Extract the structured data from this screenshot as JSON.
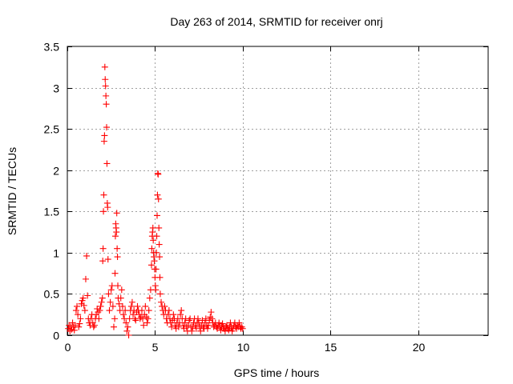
{
  "chart_data": {
    "type": "scatter",
    "title": "Day 263 of 2014, SRMTID for receiver onrj",
    "xlabel": "GPS time / hours",
    "ylabel": "SRMTID / TECUs",
    "xlim": [
      0,
      24
    ],
    "ylim": [
      0,
      3.5
    ],
    "xticks": [
      0,
      5,
      10,
      15,
      20
    ],
    "xtick_labels": [
      "0",
      "5",
      "10",
      "15",
      "20"
    ],
    "yticks": [
      0,
      0.5,
      1,
      1.5,
      2,
      2.5,
      3,
      3.5
    ],
    "ytick_labels": [
      "0",
      "0.5",
      "1",
      "1.5",
      "2",
      "2.5",
      "3",
      "3.5"
    ],
    "grid": true,
    "marker": "+",
    "series": [
      {
        "name": "onrj",
        "color": "#ff0000",
        "points": [
          [
            0.05,
            0.08
          ],
          [
            0.1,
            0.12
          ],
          [
            0.15,
            0.05
          ],
          [
            0.2,
            0.1
          ],
          [
            0.25,
            0.07
          ],
          [
            0.3,
            0.15
          ],
          [
            0.35,
            0.1
          ],
          [
            0.4,
            0.06
          ],
          [
            0.45,
            0.12
          ],
          [
            0.5,
            0.3
          ],
          [
            0.55,
            0.35
          ],
          [
            0.6,
            0.25
          ],
          [
            0.65,
            0.1
          ],
          [
            0.7,
            0.14
          ],
          [
            0.75,
            0.2
          ],
          [
            0.8,
            0.38
          ],
          [
            0.85,
            0.42
          ],
          [
            0.9,
            0.45
          ],
          [
            0.95,
            0.36
          ],
          [
            1.0,
            0.3
          ],
          [
            1.05,
            0.68
          ],
          [
            1.1,
            0.96
          ],
          [
            1.15,
            0.48
          ],
          [
            1.2,
            0.2
          ],
          [
            1.25,
            0.15
          ],
          [
            1.3,
            0.12
          ],
          [
            1.35,
            0.2
          ],
          [
            1.4,
            0.25
          ],
          [
            1.45,
            0.15
          ],
          [
            1.5,
            0.1
          ],
          [
            1.55,
            0.12
          ],
          [
            1.6,
            0.2
          ],
          [
            1.65,
            0.25
          ],
          [
            1.7,
            0.32
          ],
          [
            1.75,
            0.28
          ],
          [
            1.8,
            0.2
          ],
          [
            1.85,
            0.3
          ],
          [
            1.9,
            0.35
          ],
          [
            1.95,
            0.4
          ],
          [
            2.0,
            0.45
          ],
          [
            2.02,
            0.9
          ],
          [
            2.04,
            1.05
          ],
          [
            2.06,
            1.5
          ],
          [
            2.08,
            1.7
          ],
          [
            2.1,
            2.35
          ],
          [
            2.12,
            2.42
          ],
          [
            2.14,
            3.25
          ],
          [
            2.16,
            3.1
          ],
          [
            2.18,
            3.02
          ],
          [
            2.2,
            2.9
          ],
          [
            2.22,
            2.8
          ],
          [
            2.24,
            2.52
          ],
          [
            2.26,
            2.08
          ],
          [
            2.28,
            1.6
          ],
          [
            2.3,
            1.55
          ],
          [
            2.32,
            0.92
          ],
          [
            2.35,
            0.5
          ],
          [
            2.4,
            0.3
          ],
          [
            2.45,
            0.4
          ],
          [
            2.5,
            0.55
          ],
          [
            2.55,
            0.6
          ],
          [
            2.6,
            0.35
          ],
          [
            2.65,
            0.1
          ],
          [
            2.7,
            0.2
          ],
          [
            2.72,
            0.75
          ],
          [
            2.74,
            1.2
          ],
          [
            2.76,
            1.35
          ],
          [
            2.78,
            1.3
          ],
          [
            2.8,
            1.25
          ],
          [
            2.82,
            1.48
          ],
          [
            2.84,
            1.05
          ],
          [
            2.86,
            0.95
          ],
          [
            2.88,
            0.6
          ],
          [
            2.9,
            0.45
          ],
          [
            2.95,
            0.38
          ],
          [
            3.0,
            0.3
          ],
          [
            3.05,
            0.45
          ],
          [
            3.1,
            0.55
          ],
          [
            3.15,
            0.35
          ],
          [
            3.2,
            0.25
          ],
          [
            3.25,
            0.2
          ],
          [
            3.3,
            0.3
          ],
          [
            3.35,
            0.15
          ],
          [
            3.4,
            0.05
          ],
          [
            3.45,
            0.1
          ],
          [
            3.5,
            0.0
          ],
          [
            3.55,
            0.2
          ],
          [
            3.6,
            0.3
          ],
          [
            3.65,
            0.35
          ],
          [
            3.7,
            0.4
          ],
          [
            3.75,
            0.25
          ],
          [
            3.8,
            0.3
          ],
          [
            3.85,
            0.2
          ],
          [
            3.9,
            0.18
          ],
          [
            3.95,
            0.28
          ],
          [
            4.0,
            0.35
          ],
          [
            4.05,
            0.3
          ],
          [
            4.1,
            0.25
          ],
          [
            4.15,
            0.2
          ],
          [
            4.2,
            0.22
          ],
          [
            4.25,
            0.3
          ],
          [
            4.3,
            0.2
          ],
          [
            4.35,
            0.12
          ],
          [
            4.4,
            0.25
          ],
          [
            4.45,
            0.35
          ],
          [
            4.5,
            0.22
          ],
          [
            4.55,
            0.15
          ],
          [
            4.6,
            0.2
          ],
          [
            4.65,
            0.3
          ],
          [
            4.7,
            0.45
          ],
          [
            4.75,
            0.55
          ],
          [
            4.8,
            0.85
          ],
          [
            4.82,
            1.05
          ],
          [
            4.84,
            1.2
          ],
          [
            4.86,
            1.25
          ],
          [
            4.88,
            1.3
          ],
          [
            4.9,
            1.15
          ],
          [
            4.92,
            1.0
          ],
          [
            4.94,
            0.95
          ],
          [
            4.96,
            0.9
          ],
          [
            4.98,
            0.8
          ],
          [
            5.0,
            0.7
          ],
          [
            5.02,
            0.6
          ],
          [
            5.04,
            0.55
          ],
          [
            5.06,
            0.8
          ],
          [
            5.08,
            1.0
          ],
          [
            5.1,
            1.2
          ],
          [
            5.12,
            1.45
          ],
          [
            5.14,
            1.7
          ],
          [
            5.16,
            1.96
          ],
          [
            5.18,
            1.95
          ],
          [
            5.2,
            1.65
          ],
          [
            5.22,
            1.3
          ],
          [
            5.24,
            1.1
          ],
          [
            5.26,
            0.95
          ],
          [
            5.28,
            0.7
          ],
          [
            5.3,
            0.5
          ],
          [
            5.35,
            0.4
          ],
          [
            5.4,
            0.35
          ],
          [
            5.45,
            0.3
          ],
          [
            5.5,
            0.25
          ],
          [
            5.55,
            0.35
          ],
          [
            5.6,
            0.3
          ],
          [
            5.65,
            0.2
          ],
          [
            5.7,
            0.15
          ],
          [
            5.75,
            0.25
          ],
          [
            5.8,
            0.3
          ],
          [
            5.85,
            0.2
          ],
          [
            5.9,
            0.15
          ],
          [
            5.95,
            0.1
          ],
          [
            6.0,
            0.18
          ],
          [
            6.05,
            0.25
          ],
          [
            6.1,
            0.2
          ],
          [
            6.15,
            0.12
          ],
          [
            6.2,
            0.08
          ],
          [
            6.25,
            0.15
          ],
          [
            6.3,
            0.2
          ],
          [
            6.35,
            0.1
          ],
          [
            6.4,
            0.15
          ],
          [
            6.45,
            0.25
          ],
          [
            6.5,
            0.3
          ],
          [
            6.55,
            0.2
          ],
          [
            6.6,
            0.12
          ],
          [
            6.65,
            0.08
          ],
          [
            6.7,
            0.15
          ],
          [
            6.75,
            0.2
          ],
          [
            6.8,
            0.1
          ],
          [
            6.85,
            0.05
          ],
          [
            6.9,
            0.12
          ],
          [
            6.95,
            0.18
          ],
          [
            7.0,
            0.2
          ],
          [
            7.05,
            0.1
          ],
          [
            7.1,
            0.05
          ],
          [
            7.15,
            0.1
          ],
          [
            7.2,
            0.15
          ],
          [
            7.25,
            0.2
          ],
          [
            7.3,
            0.12
          ],
          [
            7.35,
            0.08
          ],
          [
            7.4,
            0.15
          ],
          [
            7.45,
            0.2
          ],
          [
            7.5,
            0.15
          ],
          [
            7.55,
            0.1
          ],
          [
            7.6,
            0.05
          ],
          [
            7.65,
            0.12
          ],
          [
            7.7,
            0.18
          ],
          [
            7.75,
            0.1
          ],
          [
            7.8,
            0.08
          ],
          [
            7.85,
            0.15
          ],
          [
            7.9,
            0.2
          ],
          [
            7.95,
            0.12
          ],
          [
            8.0,
            0.08
          ],
          [
            8.05,
            0.12
          ],
          [
            8.1,
            0.18
          ],
          [
            8.15,
            0.22
          ],
          [
            8.2,
            0.28
          ],
          [
            8.25,
            0.2
          ],
          [
            8.3,
            0.15
          ],
          [
            8.35,
            0.1
          ],
          [
            8.4,
            0.12
          ],
          [
            8.45,
            0.15
          ],
          [
            8.5,
            0.1
          ],
          [
            8.55,
            0.08
          ],
          [
            8.6,
            0.12
          ],
          [
            8.65,
            0.15
          ],
          [
            8.7,
            0.1
          ],
          [
            8.75,
            0.06
          ],
          [
            8.8,
            0.1
          ],
          [
            8.85,
            0.14
          ],
          [
            8.9,
            0.1
          ],
          [
            8.95,
            0.08
          ],
          [
            9.0,
            0.05
          ],
          [
            9.05,
            0.1
          ],
          [
            9.1,
            0.12
          ],
          [
            9.15,
            0.08
          ],
          [
            9.2,
            0.06
          ],
          [
            9.25,
            0.1
          ],
          [
            9.3,
            0.15
          ],
          [
            9.35,
            0.1
          ],
          [
            9.4,
            0.05
          ],
          [
            9.45,
            0.08
          ],
          [
            9.5,
            0.12
          ],
          [
            9.55,
            0.15
          ],
          [
            9.6,
            0.1
          ],
          [
            9.65,
            0.08
          ],
          [
            9.7,
            0.12
          ],
          [
            9.75,
            0.1
          ],
          [
            9.8,
            0.15
          ],
          [
            9.85,
            0.1
          ],
          [
            9.9,
            0.08
          ],
          [
            9.95,
            0.1
          ],
          [
            10.0,
            0.08
          ]
        ]
      }
    ]
  }
}
